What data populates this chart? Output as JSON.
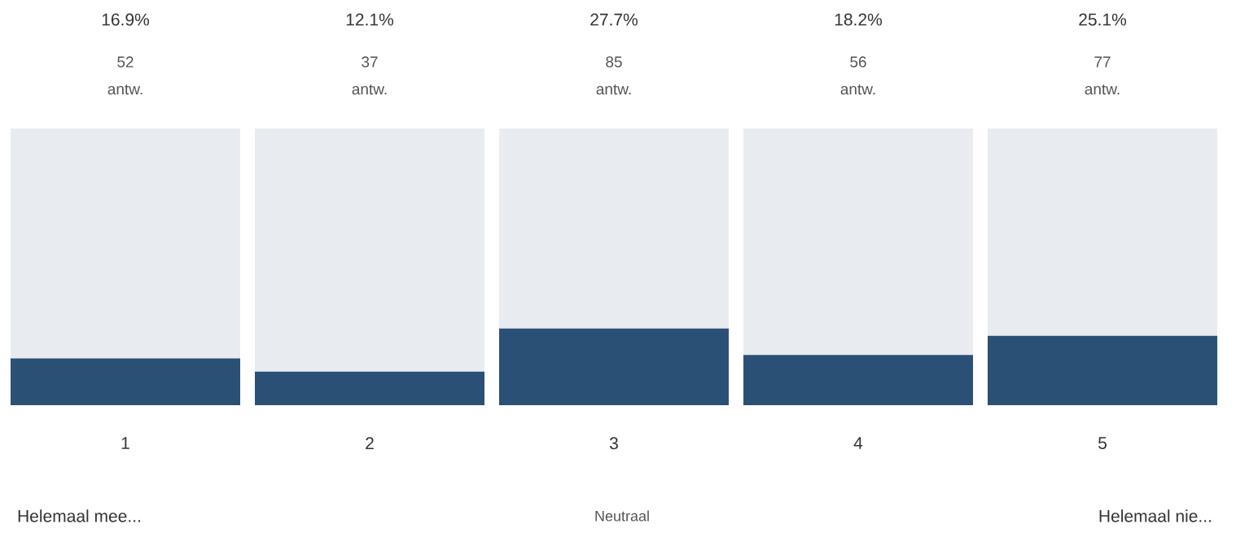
{
  "chart_data": {
    "type": "bar",
    "stacked": true,
    "categories": [
      "1",
      "2",
      "3",
      "4",
      "5"
    ],
    "ylim": [
      0,
      100
    ],
    "tick_labels": "x",
    "series": [
      {
        "color": "#2b5075",
        "values": [
          16.9,
          12.1,
          27.7,
          18.2,
          25.1
        ],
        "value_labels": [
          "16.9%",
          "12.1%",
          "27.7%",
          "18.2%",
          "25.1%"
        ]
      },
      {
        "color": "#e8ebf0",
        "values": [
          83.1,
          87.9,
          72.3,
          81.8,
          74.9
        ]
      }
    ],
    "annotations": [
      "52",
      "antw.",
      "37",
      "antw.",
      "85",
      "antw.",
      "56",
      "antw.",
      "77",
      "antw.",
      "Helemaal mee...",
      "Neutraal",
      "Helemaal nie..."
    ]
  }
}
